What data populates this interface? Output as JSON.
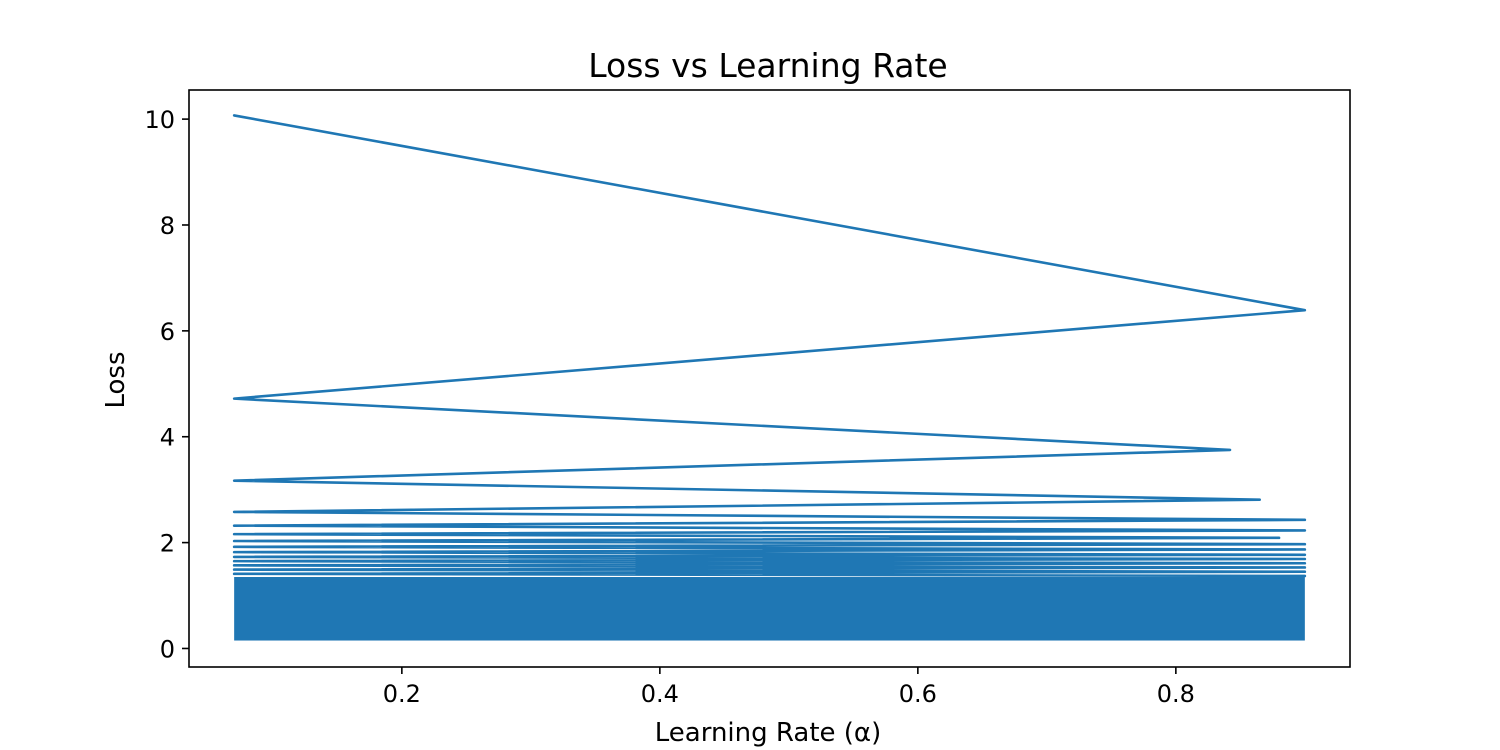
{
  "chart_data": {
    "type": "line",
    "title": "Loss vs Learning Rate",
    "xlabel": "Learning Rate (α)",
    "ylabel": "Loss",
    "xlim": [
      0.035,
      0.935
    ],
    "ylim": [
      -0.35,
      10.55
    ],
    "xticks": [
      0.2,
      0.4,
      0.6,
      0.8
    ],
    "xtick_labels": [
      "0.2",
      "0.4",
      "0.6",
      "0.8"
    ],
    "yticks": [
      0,
      2,
      4,
      6,
      8,
      10
    ],
    "ytick_labels": [
      "0",
      "2",
      "4",
      "6",
      "8",
      "10"
    ],
    "grid": false,
    "legend": "none",
    "color": "#1f77b4",
    "series": [
      {
        "x": [
          0.07,
          0.9,
          0.07,
          0.842,
          0.07,
          0.865,
          0.07,
          0.9,
          0.07,
          0.9,
          0.07,
          0.88,
          0.07,
          0.9,
          0.07,
          0.9,
          0.07,
          0.9,
          0.07,
          0.9,
          0.07,
          0.9,
          0.07,
          0.9,
          0.07,
          0.9,
          0.07,
          0.9
        ],
        "y": [
          10.07,
          6.39,
          4.72,
          3.75,
          3.17,
          2.81,
          2.58,
          2.43,
          2.32,
          2.23,
          2.16,
          2.09,
          2.03,
          1.97,
          1.92,
          1.87,
          1.82,
          1.77,
          1.73,
          1.69,
          1.65,
          1.61,
          1.57,
          1.53,
          1.49,
          1.45,
          1.41,
          1.37
        ]
      }
    ],
    "dense_band": {
      "x_range": [
        0.07,
        0.9
      ],
      "y_range": [
        0.15,
        1.35
      ]
    }
  }
}
